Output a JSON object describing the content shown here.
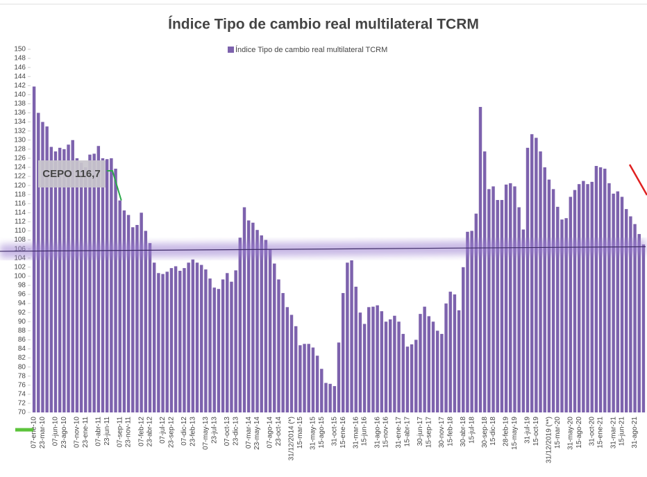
{
  "chart_data": {
    "type": "bar",
    "title": "Índice Tipo de cambio real multilateral TCRM",
    "series": [
      {
        "name": "Índice Tipo de cambio real multilateral TCRM",
        "color": "#7d62ad",
        "values": [
          141.8,
          136,
          134,
          133,
          128.5,
          127.5,
          128.3,
          128,
          129,
          130,
          126,
          125,
          124,
          126.8,
          127,
          128.7,
          126,
          125.8,
          126,
          123.7,
          116.7,
          114.5,
          113.5,
          110.8,
          111.3,
          114,
          110,
          107.3,
          103,
          100.7,
          100.5,
          101,
          101.8,
          102.2,
          101.2,
          101.8,
          103,
          103.7,
          103,
          102.5,
          101.5,
          99.5,
          97.5,
          97.2,
          99.3,
          100.7,
          98.8,
          101.3,
          108.5,
          115.2,
          112.3,
          111.8,
          110.2,
          109,
          108,
          106,
          102.8,
          99.3,
          96.3,
          93.2,
          91.5,
          89,
          84.8,
          85.1,
          85.1,
          84.3,
          82.5,
          79.6,
          76.5,
          76.3,
          75.8,
          85.4,
          96.3,
          103,
          103.5,
          97.7,
          92,
          89.5,
          93.2,
          93.3,
          93.6,
          92.3,
          90,
          90.5,
          91.3,
          90,
          87.3,
          84.5,
          85,
          86,
          91.7,
          93.3,
          91.2,
          90,
          88,
          87.3,
          94,
          96.6,
          96,
          92.5,
          102,
          109.8,
          110,
          113.8,
          137.3,
          127.5,
          119.2,
          119.8,
          116.8,
          116.8,
          120.2,
          120.5,
          119.8,
          115.2,
          110.3,
          128.3,
          131.3,
          130.5,
          127.5,
          124,
          121.3,
          119.2,
          115.3,
          112.5,
          112.8,
          117.5,
          119,
          120.3,
          121,
          120.3,
          120.8,
          124.3,
          124,
          123.7,
          120.5,
          118.2,
          118.7,
          117.5,
          114.8,
          113.2,
          111.5,
          109.3,
          107
        ]
      }
    ],
    "categories": [
      "07-ene-10",
      null,
      "23-mar-10",
      null,
      null,
      "07-jun-10",
      null,
      "23-ago-10",
      null,
      null,
      "07-nov-10",
      null,
      "23-ene-11",
      null,
      null,
      "07-abr-11",
      null,
      "23-jun-11",
      null,
      null,
      "07-sep-11",
      null,
      "23-nov-11",
      null,
      null,
      "07-feb-12",
      null,
      "23-abr-12",
      null,
      null,
      "07-jul-12",
      null,
      "23-sep-12",
      null,
      null,
      "07-dic-12",
      null,
      "23-feb-13",
      null,
      null,
      "07-may-13",
      null,
      "23-jul-13",
      null,
      null,
      "07-oct-13",
      null,
      "23-dic-13",
      null,
      null,
      "07-mar-14",
      null,
      "23-may-14",
      null,
      null,
      "07-ago-14",
      null,
      "23-oct-14",
      null,
      null,
      "31/12/2014 (*)",
      null,
      "15-mar-15",
      null,
      null,
      "31-may-15",
      null,
      "15-ago-15",
      null,
      null,
      "31-oct-15",
      null,
      "15-ene-16",
      null,
      null,
      "31-mar-16",
      null,
      "15-jun-16",
      null,
      null,
      "31-ago-16",
      null,
      "15-nov-16",
      null,
      null,
      "31-ene-17",
      null,
      "15-abr-17",
      null,
      null,
      "30-jun-17",
      null,
      "15-sep-17",
      null,
      null,
      "30-nov-17",
      null,
      "15-feb-18",
      null,
      null,
      "30-abr-18",
      null,
      "15-jul-18",
      null,
      null,
      "30-sep-18",
      null,
      "15-dic-18",
      null,
      null,
      "28-feb-19",
      null,
      "15-may-19",
      null,
      null,
      "31-jul-19",
      null,
      "15-oct-19",
      null,
      null,
      "31/12/2019 (**)",
      null,
      "15-mar-20",
      null,
      null,
      "31-may-20",
      null,
      "15-ago-20",
      null,
      null,
      "31-oct-20",
      null,
      "15-ene-21",
      null,
      null,
      "31-mar-21",
      null,
      "15-jun-21",
      null,
      null,
      "31-ago-21",
      null,
      null
    ],
    "ylim": [
      70,
      150
    ],
    "yticks": [
      70,
      72,
      74,
      76,
      78,
      80,
      82,
      84,
      86,
      88,
      90,
      92,
      94,
      96,
      98,
      100,
      102,
      104,
      106,
      108,
      110,
      112,
      114,
      116,
      118,
      120,
      122,
      124,
      126,
      128,
      130,
      132,
      134,
      136,
      138,
      140,
      142,
      144,
      146,
      148,
      150
    ],
    "average_line": [
      105.5,
      106.5
    ],
    "annotation": {
      "text": "CEPO 116,7",
      "value": 116.7
    }
  }
}
